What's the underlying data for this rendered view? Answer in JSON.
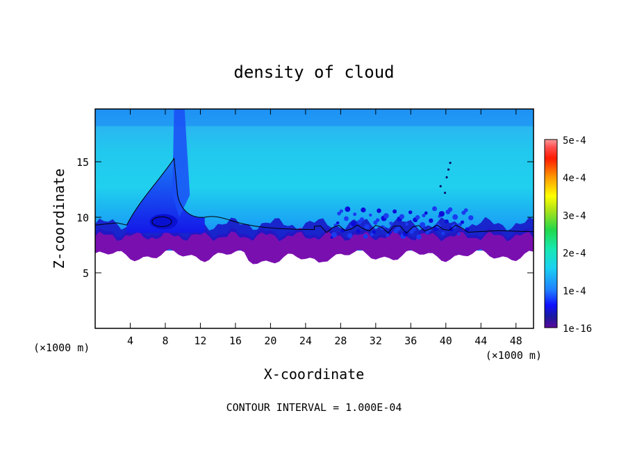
{
  "chart_data": {
    "type": "heatmap",
    "title": "density of cloud",
    "xlabel": "X-coordinate",
    "ylabel": "Z-coordinate",
    "x_unit": "(×1000 m)",
    "y_unit": "(×1000 m)",
    "xlim": [
      0,
      50
    ],
    "ylim": [
      0,
      19.75
    ],
    "x_ticks": [
      4,
      8,
      12,
      16,
      20,
      24,
      28,
      32,
      36,
      40,
      44,
      48
    ],
    "y_ticks": [
      5,
      10,
      15
    ],
    "colorbar": {
      "min_label": "1e-16",
      "labels": [
        "1e-4",
        "2e-4",
        "3e-4",
        "4e-4",
        "5e-4"
      ],
      "values": [
        0.0001,
        0.0002,
        0.0003,
        0.0004,
        0.0005
      ],
      "range": [
        0,
        0.0005
      ]
    },
    "annotation": "CONTOUR INTERVAL = 1.000E-04",
    "field_description": {
      "cloud_base_z": [
        7.0,
        6.2
      ],
      "cloud_top_z": 19.75,
      "background_level": 0.00012,
      "plume_peak_x": 9,
      "plume_top_z": 15.3
    }
  }
}
